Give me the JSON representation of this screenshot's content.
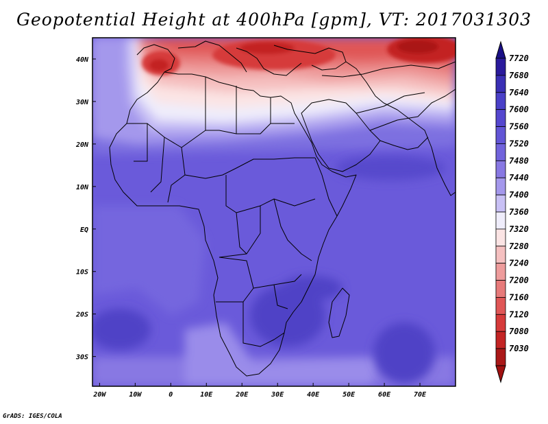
{
  "title": "Geopotential Height at 400hPa [gpm], VT: 2017031303",
  "credit": "GrADS: IGES/COLA",
  "map": {
    "lon_range": [
      -22,
      80
    ],
    "lat_range": [
      -37,
      45
    ],
    "x_ticks": [
      {
        "lon": -20,
        "label": "20W"
      },
      {
        "lon": -10,
        "label": "10W"
      },
      {
        "lon": 0,
        "label": "0"
      },
      {
        "lon": 10,
        "label": "10E"
      },
      {
        "lon": 20,
        "label": "20E"
      },
      {
        "lon": 30,
        "label": "30E"
      },
      {
        "lon": 40,
        "label": "40E"
      },
      {
        "lon": 50,
        "label": "50E"
      },
      {
        "lon": 60,
        "label": "60E"
      },
      {
        "lon": 70,
        "label": "70E"
      }
    ],
    "y_ticks": [
      {
        "lat": 40,
        "label": "40N"
      },
      {
        "lat": 30,
        "label": "30N"
      },
      {
        "lat": 20,
        "label": "20N"
      },
      {
        "lat": 10,
        "label": "10N"
      },
      {
        "lat": 0,
        "label": "EQ"
      },
      {
        "lat": -10,
        "label": "10S"
      },
      {
        "lat": -20,
        "label": "20S"
      },
      {
        "lat": -30,
        "label": "30S"
      }
    ]
  },
  "colorbar": {
    "levels": [
      "7720",
      "7680",
      "7640",
      "7600",
      "7560",
      "7520",
      "7480",
      "7440",
      "7400",
      "7360",
      "7320",
      "7280",
      "7240",
      "7200",
      "7160",
      "7120",
      "7080",
      "7030"
    ],
    "colors": [
      "#2a1a9c",
      "#3a2fb5",
      "#4a40c8",
      "#5547cf",
      "#6255d6",
      "#7163dc",
      "#8878e3",
      "#a498ec",
      "#c8c0f5",
      "#efedfb",
      "#fbe4e4",
      "#f5c0c0",
      "#ee9c9c",
      "#e77a7a",
      "#e05656",
      "#d63a3a",
      "#c32424",
      "#aa1818"
    ],
    "top_color": "#1a0f86",
    "bottom_color": "#a01010"
  }
}
